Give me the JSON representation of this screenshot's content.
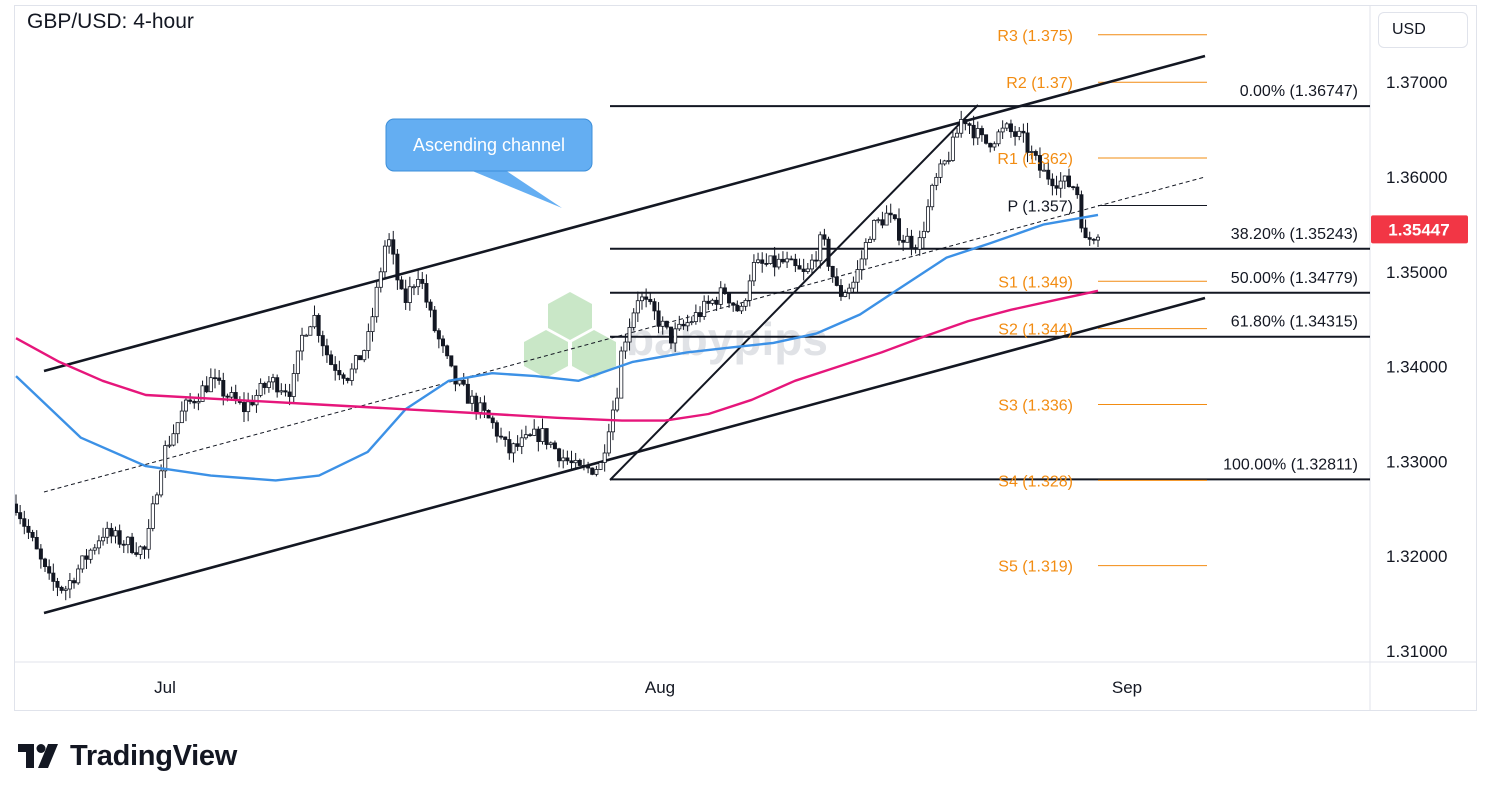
{
  "header": {
    "title": "GBP/USD: 4-hour",
    "currency": "USD"
  },
  "branding": {
    "name": "TradingView",
    "watermark": "babypips"
  },
  "colors": {
    "up": "#131722",
    "down": "#131722",
    "sma_blue": "#3c91e6",
    "sma_magenta": "#e6167b",
    "pivot": "#f28c12",
    "fib_line": "#131722",
    "price_badge": "#f23645",
    "callout": "#64aef2",
    "watermark": "#9ed49a"
  },
  "chart_data": {
    "type": "candlestick",
    "title": "GBP/USD: 4-hour",
    "x_axis": {
      "tick_labels": [
        "Jul",
        "Aug",
        "Sep"
      ]
    },
    "y_axis": {
      "range": [
        1.306,
        1.3775
      ],
      "tick_labels": [
        "1.31000",
        "1.32000",
        "1.33000",
        "1.34000",
        "1.35000",
        "1.36000",
        "1.37000"
      ]
    },
    "current_price": {
      "value": 1.35447,
      "label": "1.35447"
    },
    "fibonacci": [
      {
        "label": "0.00% (1.36747)",
        "value": 1.36747
      },
      {
        "label": "38.20% (1.35243)",
        "value": 1.35243
      },
      {
        "label": "50.00% (1.34779)",
        "value": 1.34779
      },
      {
        "label": "61.80% (1.34315)",
        "value": 1.34315
      },
      {
        "label": "100.00% (1.32811)",
        "value": 1.32811
      }
    ],
    "pivots": [
      {
        "label": "R3 (1.375)",
        "value": 1.375
      },
      {
        "label": "R2 (1.37)",
        "value": 1.37
      },
      {
        "label": "R1 (1.362)",
        "value": 1.362
      },
      {
        "label": "P (1.357)",
        "value": 1.357
      },
      {
        "label": "S1 (1.349)",
        "value": 1.349
      },
      {
        "label": "S2 (1.344)",
        "value": 1.344
      },
      {
        "label": "S3 (1.336)",
        "value": 1.336
      },
      {
        "label": "S4 (1.328)",
        "value": 1.328
      },
      {
        "label": "S5 (1.319)",
        "value": 1.319
      }
    ],
    "annotation": {
      "text": "Ascending channel"
    },
    "series": [
      {
        "key": "price",
        "type": "candlestick",
        "approx_close_path": [
          {
            "t": 0.0,
            "v": 1.3255
          },
          {
            "t": 0.03,
            "v": 1.3175
          },
          {
            "t": 0.045,
            "v": 1.3165
          },
          {
            "t": 0.08,
            "v": 1.3225
          },
          {
            "t": 0.12,
            "v": 1.3205
          },
          {
            "t": 0.135,
            "v": 1.3305
          },
          {
            "t": 0.155,
            "v": 1.3355
          },
          {
            "t": 0.18,
            "v": 1.3385
          },
          {
            "t": 0.21,
            "v": 1.3355
          },
          {
            "t": 0.235,
            "v": 1.3385
          },
          {
            "t": 0.255,
            "v": 1.3375
          },
          {
            "t": 0.265,
            "v": 1.3435
          },
          {
            "t": 0.275,
            "v": 1.3455
          },
          {
            "t": 0.29,
            "v": 1.3405
          },
          {
            "t": 0.308,
            "v": 1.339
          },
          {
            "t": 0.325,
            "v": 1.3425
          },
          {
            "t": 0.343,
            "v": 1.354
          },
          {
            "t": 0.358,
            "v": 1.3465
          },
          {
            "t": 0.372,
            "v": 1.35
          },
          {
            "t": 0.385,
            "v": 1.3445
          },
          {
            "t": 0.405,
            "v": 1.3385
          },
          {
            "t": 0.42,
            "v": 1.3365
          },
          {
            "t": 0.44,
            "v": 1.334
          },
          {
            "t": 0.455,
            "v": 1.331
          },
          {
            "t": 0.485,
            "v": 1.333
          },
          {
            "t": 0.505,
            "v": 1.3305
          },
          {
            "t": 0.52,
            "v": 1.329
          },
          {
            "t": 0.54,
            "v": 1.3295
          },
          {
            "t": 0.548,
            "v": 1.334
          },
          {
            "t": 0.555,
            "v": 1.337
          },
          {
            "t": 0.56,
            "v": 1.342
          },
          {
            "t": 0.575,
            "v": 1.3475
          },
          {
            "t": 0.59,
            "v": 1.3455
          },
          {
            "t": 0.605,
            "v": 1.343
          },
          {
            "t": 0.63,
            "v": 1.3455
          },
          {
            "t": 0.655,
            "v": 1.348
          },
          {
            "t": 0.67,
            "v": 1.3455
          },
          {
            "t": 0.68,
            "v": 1.3505
          },
          {
            "t": 0.71,
            "v": 1.351
          },
          {
            "t": 0.73,
            "v": 1.3495
          },
          {
            "t": 0.745,
            "v": 1.3535
          },
          {
            "t": 0.76,
            "v": 1.3475
          },
          {
            "t": 0.775,
            "v": 1.349
          },
          {
            "t": 0.79,
            "v": 1.3545
          },
          {
            "t": 0.805,
            "v": 1.356
          },
          {
            "t": 0.82,
            "v": 1.3535
          },
          {
            "t": 0.835,
            "v": 1.353
          },
          {
            "t": 0.848,
            "v": 1.359
          },
          {
            "t": 0.865,
            "v": 1.363
          },
          {
            "t": 0.875,
            "v": 1.3665
          },
          {
            "t": 0.885,
            "v": 1.365
          },
          {
            "t": 0.895,
            "v": 1.3635
          },
          {
            "t": 0.915,
            "v": 1.365
          },
          {
            "t": 0.93,
            "v": 1.364
          },
          {
            "t": 0.948,
            "v": 1.3605
          },
          {
            "t": 0.965,
            "v": 1.3595
          },
          {
            "t": 0.98,
            "v": 1.359
          },
          {
            "t": 0.988,
            "v": 1.353
          },
          {
            "t": 1.0,
            "v": 1.35447
          }
        ]
      },
      {
        "key": "sma_blue",
        "type": "line",
        "points": [
          {
            "t": 0.0,
            "v": 1.339
          },
          {
            "t": 0.06,
            "v": 1.3325
          },
          {
            "t": 0.12,
            "v": 1.3295
          },
          {
            "t": 0.18,
            "v": 1.3285
          },
          {
            "t": 0.24,
            "v": 1.328
          },
          {
            "t": 0.28,
            "v": 1.3285
          },
          {
            "t": 0.325,
            "v": 1.331
          },
          {
            "t": 0.36,
            "v": 1.3355
          },
          {
            "t": 0.4,
            "v": 1.3385
          },
          {
            "t": 0.44,
            "v": 1.3393
          },
          {
            "t": 0.48,
            "v": 1.339
          },
          {
            "t": 0.52,
            "v": 1.3385
          },
          {
            "t": 0.57,
            "v": 1.3405
          },
          {
            "t": 0.62,
            "v": 1.3415
          },
          {
            "t": 0.66,
            "v": 1.342
          },
          {
            "t": 0.7,
            "v": 1.3425
          },
          {
            "t": 0.74,
            "v": 1.3435
          },
          {
            "t": 0.78,
            "v": 1.3455
          },
          {
            "t": 0.82,
            "v": 1.3485
          },
          {
            "t": 0.86,
            "v": 1.3515
          },
          {
            "t": 0.9,
            "v": 1.353
          },
          {
            "t": 0.95,
            "v": 1.355
          },
          {
            "t": 1.0,
            "v": 1.356
          }
        ]
      },
      {
        "key": "sma_magenta",
        "type": "line",
        "points": [
          {
            "t": 0.0,
            "v": 1.343
          },
          {
            "t": 0.04,
            "v": 1.3405
          },
          {
            "t": 0.08,
            "v": 1.3385
          },
          {
            "t": 0.12,
            "v": 1.337
          },
          {
            "t": 0.2,
            "v": 1.3365
          },
          {
            "t": 0.28,
            "v": 1.336
          },
          {
            "t": 0.36,
            "v": 1.3355
          },
          {
            "t": 0.44,
            "v": 1.335
          },
          {
            "t": 0.5,
            "v": 1.3346
          },
          {
            "t": 0.56,
            "v": 1.3343
          },
          {
            "t": 0.6,
            "v": 1.3343
          },
          {
            "t": 0.64,
            "v": 1.335
          },
          {
            "t": 0.68,
            "v": 1.3365
          },
          {
            "t": 0.72,
            "v": 1.3385
          },
          {
            "t": 0.76,
            "v": 1.34
          },
          {
            "t": 0.8,
            "v": 1.3415
          },
          {
            "t": 0.84,
            "v": 1.3432
          },
          {
            "t": 0.88,
            "v": 1.3448
          },
          {
            "t": 0.92,
            "v": 1.346
          },
          {
            "t": 0.96,
            "v": 1.347
          },
          {
            "t": 1.0,
            "v": 1.348
          }
        ]
      }
    ]
  }
}
